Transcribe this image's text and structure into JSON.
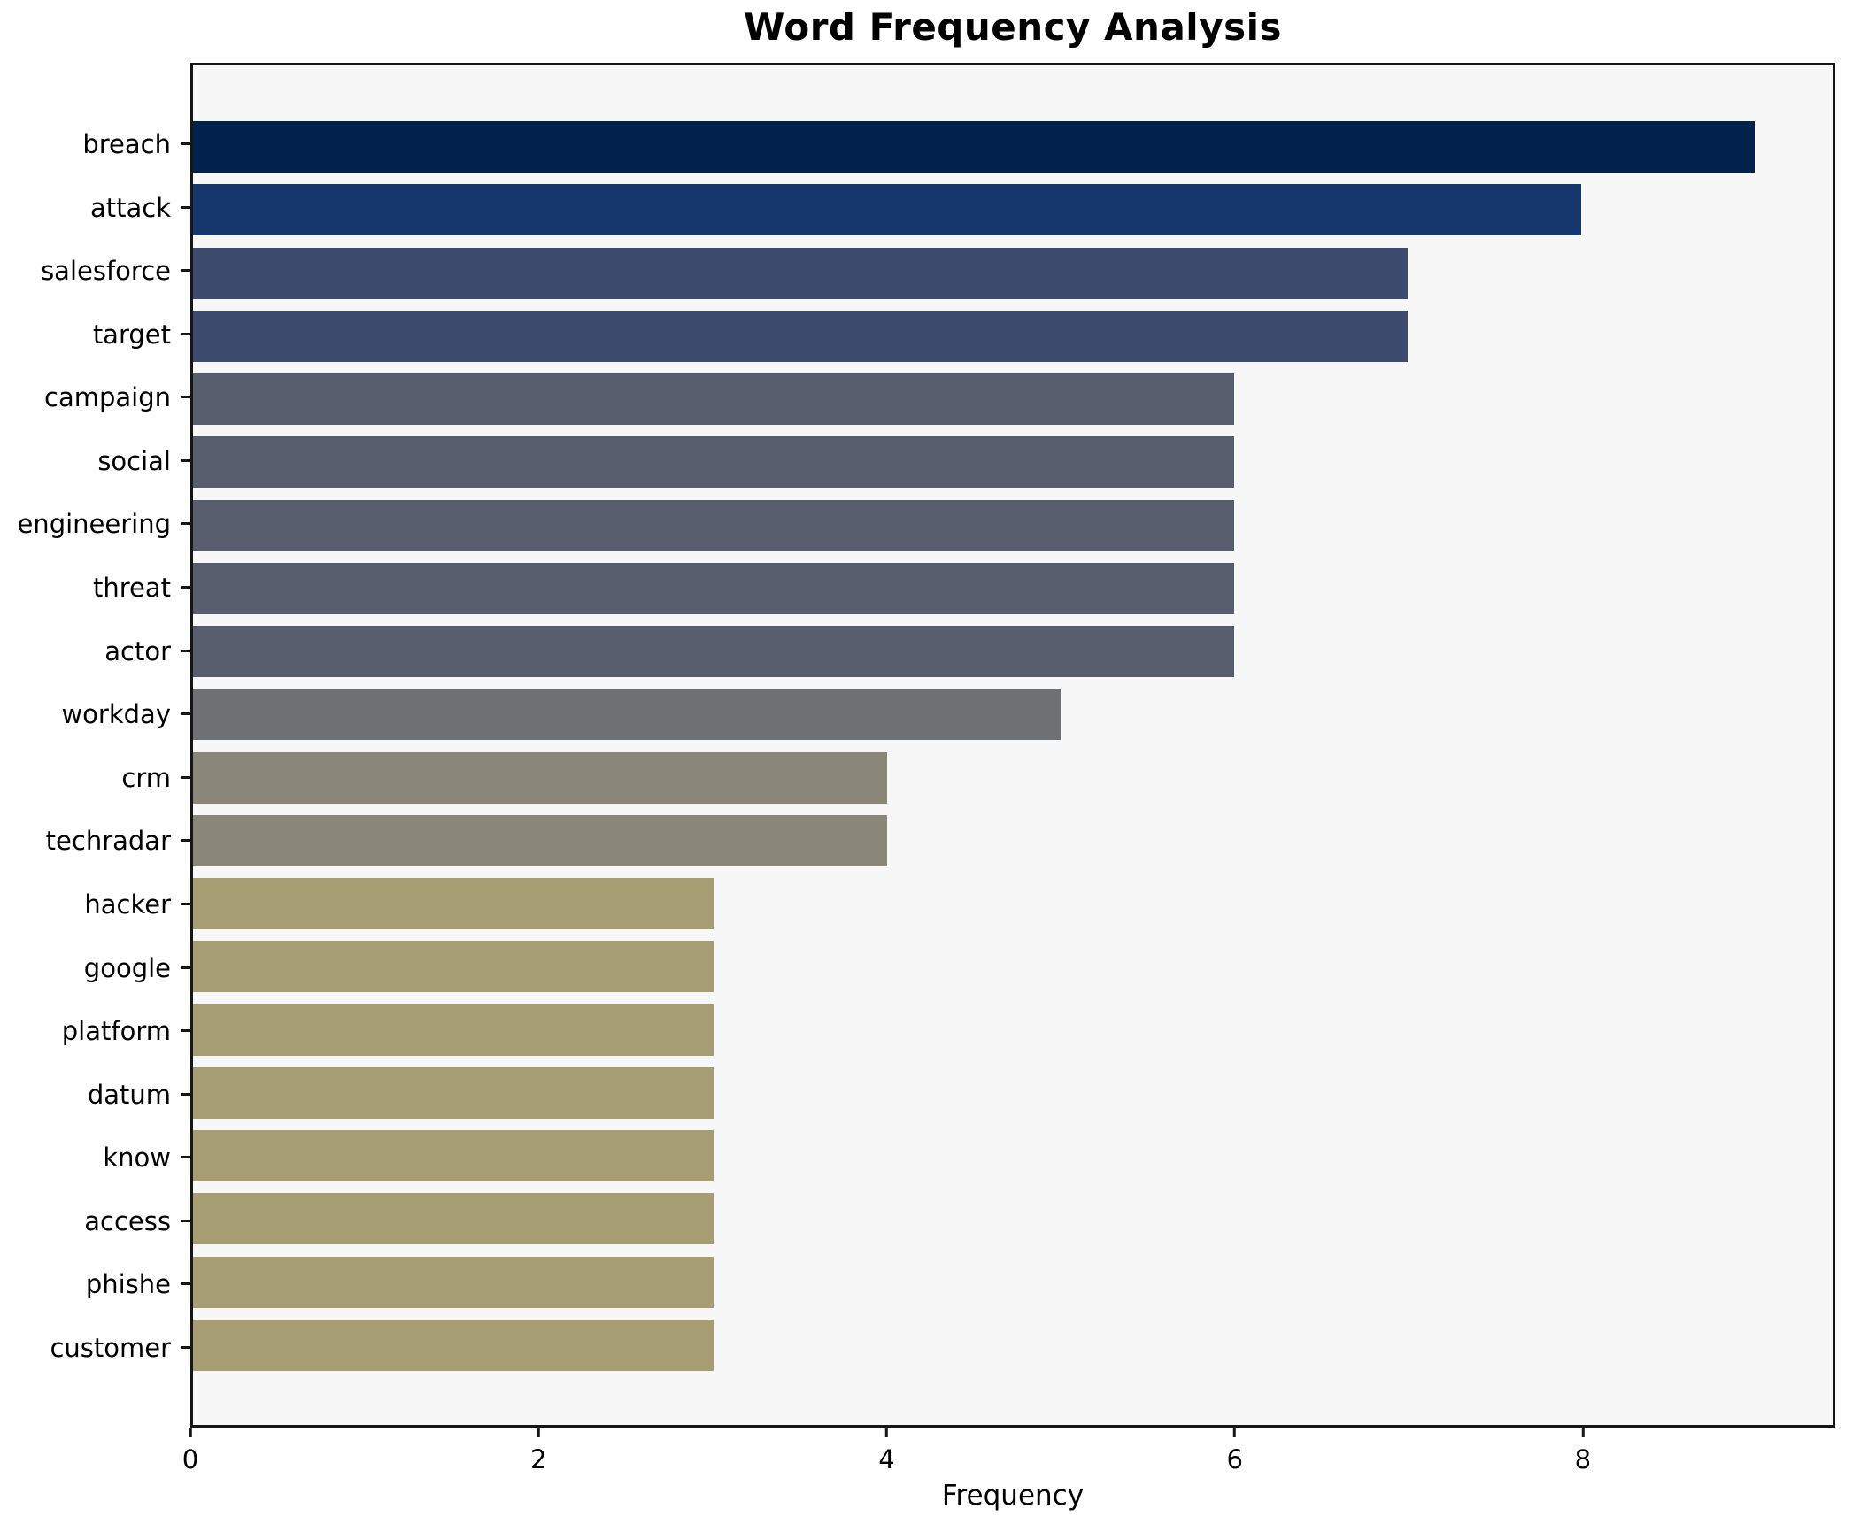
{
  "chart_data": {
    "type": "bar",
    "orientation": "horizontal",
    "title": "Word Frequency Analysis",
    "xlabel": "Frequency",
    "ylabel": "",
    "categories": [
      "breach",
      "attack",
      "salesforce",
      "target",
      "campaign",
      "social",
      "engineering",
      "threat",
      "actor",
      "workday",
      "crm",
      "techradar",
      "hacker",
      "google",
      "platform",
      "datum",
      "know",
      "access",
      "phishe",
      "customer"
    ],
    "values": [
      9,
      8,
      7,
      7,
      6,
      6,
      6,
      6,
      6,
      5,
      4,
      4,
      3,
      3,
      3,
      3,
      3,
      3,
      3,
      3
    ],
    "bar_colors": [
      "#01224d",
      "#16376e",
      "#3c4b6e",
      "#3c4b6e",
      "#575d6c",
      "#575d6c",
      "#575d6c",
      "#575d6c",
      "#575d6c",
      "#6f7073",
      "#8a8779",
      "#8a8779",
      "#a69d73",
      "#a69d73",
      "#a69d73",
      "#a69d73",
      "#a69d73",
      "#a69d73",
      "#a69d73",
      "#a69d73"
    ],
    "xlim": [
      0,
      9.45
    ],
    "xticks": [
      0,
      2,
      4,
      6,
      8
    ],
    "grid": false,
    "legend": "none",
    "plot_background": "#f7f7f8",
    "figure_background": "#ffffff",
    "spine_color": "#161616"
  }
}
